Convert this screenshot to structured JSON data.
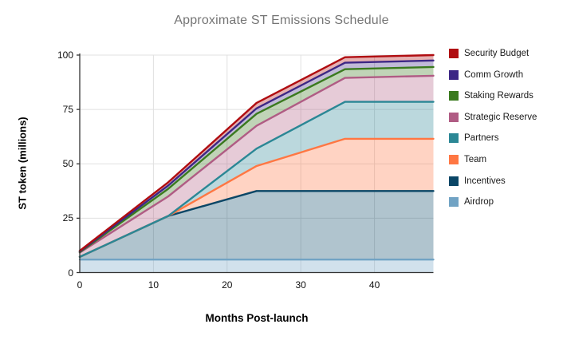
{
  "title": "Approximate ST Emissions Schedule",
  "colors": {
    "title_text": "#757575",
    "grid": "#e0e0e0",
    "axis": "#333333",
    "tick_text": "#111111",
    "legend_text": "#1a1a1a",
    "background": "#ffffff"
  },
  "chart_data": {
    "type": "area",
    "stacked": true,
    "title": "Approximate ST Emissions Schedule",
    "xlabel": "Months Post-launch",
    "ylabel": "ST token (millions)",
    "xlim": [
      0,
      48
    ],
    "ylim": [
      0,
      100
    ],
    "x_ticks": [
      0,
      10,
      20,
      30,
      40
    ],
    "y_ticks": [
      0,
      25,
      50,
      75,
      100
    ],
    "grid": true,
    "legend_position": "right",
    "x_months": [
      0,
      12,
      24,
      36,
      48
    ],
    "note": "values_cumulative_top gives the stacked cumulative boundary (millions of ST) for each series at x_months; series listed bottom-to-top of the stack",
    "series": [
      {
        "name": "Airdrop",
        "color": "#71A3C4",
        "values_cumulative_top": [
          6,
          6,
          6,
          6,
          6
        ]
      },
      {
        "name": "Incentives",
        "color": "#0A4666",
        "values_cumulative_top": [
          7.2,
          26,
          37.5,
          37.5,
          37.5
        ]
      },
      {
        "name": "Team",
        "color": "#FF7743",
        "values_cumulative_top": [
          7.2,
          26,
          49,
          61.5,
          61.5
        ]
      },
      {
        "name": "Partners",
        "color": "#2B8795",
        "values_cumulative_top": [
          7.2,
          26,
          57,
          78.5,
          78.5
        ]
      },
      {
        "name": "Strategic Reserve",
        "color": "#B05C84",
        "values_cumulative_top": [
          9.2,
          35,
          67.5,
          89.5,
          90.5
        ]
      },
      {
        "name": "Staking Rewards",
        "color": "#3A7A1E",
        "values_cumulative_top": [
          9.4,
          38.5,
          73,
          93.5,
          94.5
        ]
      },
      {
        "name": "Comm Growth",
        "color": "#3D2785",
        "values_cumulative_top": [
          9.7,
          40,
          75.5,
          96.5,
          97.5
        ]
      },
      {
        "name": "Security Budget",
        "color": "#B00D11",
        "values_cumulative_top": [
          10,
          41.5,
          78,
          99,
          100
        ]
      }
    ],
    "legend_order_top_to_bottom": [
      "Security Budget",
      "Comm Growth",
      "Staking Rewards",
      "Strategic Reserve",
      "Partners",
      "Team",
      "Incentives",
      "Airdrop"
    ]
  }
}
